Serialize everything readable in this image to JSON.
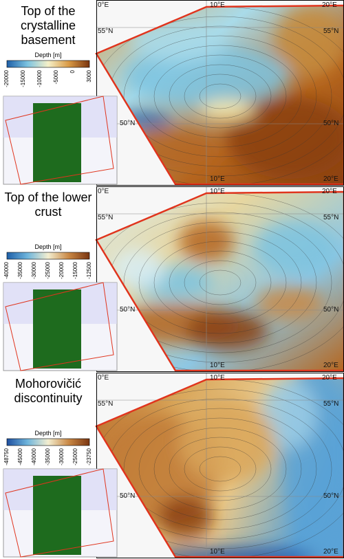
{
  "panels": [
    {
      "title": "Top of the crystalline basement",
      "colorbar_label": "Depth [m]",
      "colorbar_ticks": [
        "-20000",
        "-15000",
        "-10000",
        "-5000",
        "0",
        "3000"
      ],
      "map_labels": [
        "0°E",
        "10°E",
        "20°E",
        "55°N",
        "55°N",
        "50°N",
        "50°N",
        "10°E",
        "20°E"
      ]
    },
    {
      "title": "Top of the lower crust",
      "colorbar_label": "Depth [m]",
      "colorbar_ticks": [
        "-40000",
        "-35000",
        "-30000",
        "-25000",
        "-20000",
        "-15000",
        "-12500"
      ],
      "map_labels": [
        "0°E",
        "10°E",
        "20°E",
        "55°N",
        "55°N",
        "50°N",
        "50°N",
        "10°E",
        "20°E"
      ]
    },
    {
      "title": "Mohorovičić discontinuity",
      "colorbar_label": "Depth [m]",
      "colorbar_ticks": [
        "-48750",
        "-45000",
        "-40000",
        "-35000",
        "-30000",
        "-25000",
        "-23750"
      ],
      "map_labels": [
        "0°E",
        "10°E",
        "20°E",
        "55°N",
        "55°N",
        "50°N",
        "50°N",
        "10°E",
        "20°E"
      ]
    }
  ]
}
